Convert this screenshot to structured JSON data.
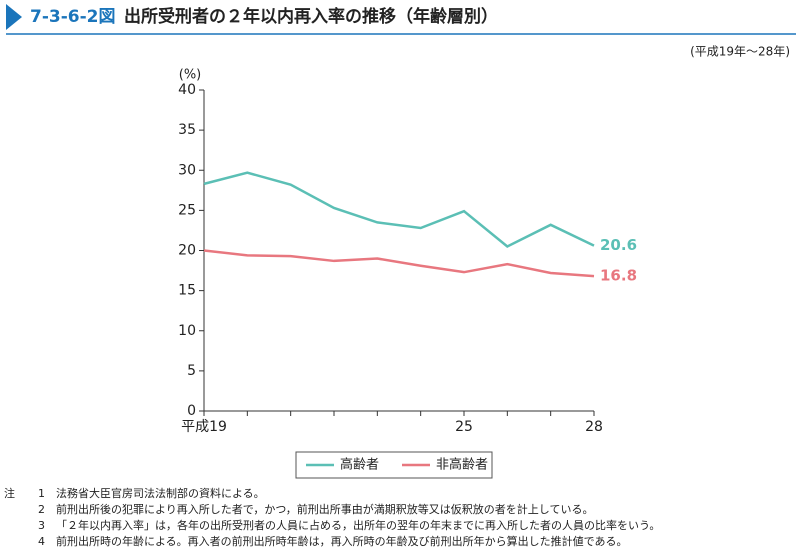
{
  "chart_data": {
    "type": "line",
    "figure_number": "7-3-6-2図",
    "title": "出所受刑者の２年以内再入率の推移（年齢層別）",
    "subtitle": "(平成19年～28年)",
    "y_unit": "(%)",
    "categories": [
      "平成19",
      null,
      null,
      null,
      null,
      null,
      "25",
      null,
      null,
      "28"
    ],
    "series": [
      {
        "name": "高齢者",
        "color": "#5bbfb5",
        "values": [
          28.3,
          29.7,
          28.2,
          25.3,
          23.5,
          22.8,
          24.9,
          20.5,
          23.2,
          20.6
        ]
      },
      {
        "name": "非高齢者",
        "color": "#e8777f",
        "values": [
          20.0,
          19.4,
          19.3,
          18.7,
          19.0,
          18.1,
          17.3,
          18.3,
          17.2,
          16.8
        ]
      }
    ],
    "ylim": [
      0,
      40
    ],
    "yticks": [
      0,
      5,
      10,
      15,
      20,
      25,
      30,
      35,
      40
    ],
    "grid": false,
    "legend": "bottom",
    "notes": {
      "label": "注",
      "items": [
        {
          "number": "1",
          "text": "法務省大臣官房司法法制部の資料による。"
        },
        {
          "number": "2",
          "text": "前刑出所後の犯罪により再入所した者で，かつ，前刑出所事由が満期釈放等又は仮釈放の者を計上している。"
        },
        {
          "number": "3",
          "text": "「２年以内再入率」は，各年の出所受刑者の人員に占める，出所年の翌年の年末までに再入所した者の人員の比率をいう。"
        },
        {
          "number": "4",
          "text": "前刑出所時の年齢による。再入者の前刑出所時年齢は，再入所時の年齢及び前刑出所年から算出した推計値である。"
        }
      ]
    }
  }
}
